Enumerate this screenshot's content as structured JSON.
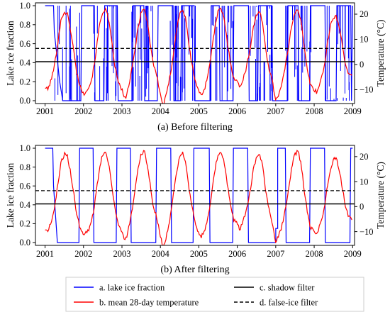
{
  "figure": {
    "legend": {
      "entries": [
        {
          "key": "ice",
          "label": "a. lake ice fraction",
          "color": "#0000ff",
          "dash": false
        },
        {
          "key": "temp",
          "label": "b. mean 28-day temperature",
          "color": "#ff0000",
          "dash": false
        },
        {
          "key": "shadow",
          "label": "c. shadow filter",
          "color": "#000000",
          "dash": false
        },
        {
          "key": "falseice",
          "label": "d. false-ice filter",
          "color": "#000000",
          "dash": true
        }
      ]
    }
  },
  "chart_data": [
    {
      "type": "line",
      "caption": "(a) Before filtering",
      "ylabel": "Lake ice fraction",
      "y2label": "Temperature (°C)",
      "xlim": [
        2000.75,
        2009.05
      ],
      "ylim": [
        -0.03,
        1.03
      ],
      "y2lim": [
        -15.5,
        24.5
      ],
      "xticks": [
        "2001",
        "2002",
        "2003",
        "2004",
        "2005",
        "2006",
        "2007",
        "2008",
        "2009"
      ],
      "yticks": [
        "0.0",
        "0.2",
        "0.4",
        "0.6",
        "0.8",
        "1.0"
      ],
      "y2ticks": [
        "−10",
        "0",
        "10",
        "20"
      ],
      "shadow_filter": 0.41,
      "false_ice_filter": 0.55,
      "series": [
        {
          "name": "a. lake ice fraction",
          "axis": "left",
          "noisy": true,
          "x": [
            2001.0,
            2001.22,
            2001.24,
            2001.38,
            2001.46,
            2001.6,
            2001.93,
            2001.95,
            2002.28,
            2002.3,
            2002.53,
            2002.55,
            2002.88,
            2002.9,
            2003.27,
            2003.29,
            2003.57,
            2003.59,
            2003.92,
            2003.94,
            2004.33,
            2004.35,
            2004.53,
            2004.55,
            2004.88,
            2004.9,
            2005.3,
            2005.32,
            2005.53,
            2005.55,
            2005.89,
            2005.91,
            2006.29,
            2006.31,
            2006.53,
            2006.55,
            2006.9,
            2006.92,
            2007.3,
            2007.32,
            2007.58,
            2007.6,
            2007.88,
            2007.9,
            2008.28,
            2008.3,
            2008.57,
            2008.59,
            2008.95,
            2008.97,
            2009.0
          ],
          "y": [
            1.0,
            1.0,
            0.72,
            0.2,
            0.0,
            0.0,
            0.0,
            1.0,
            1.0,
            0.0,
            0.0,
            1.0,
            1.0,
            0.0,
            0.0,
            1.0,
            1.0,
            0.0,
            0.0,
            1.0,
            1.0,
            0.0,
            0.0,
            1.0,
            1.0,
            0.0,
            0.0,
            1.0,
            1.0,
            0.0,
            0.0,
            1.0,
            1.0,
            0.0,
            0.0,
            1.0,
            1.0,
            0.0,
            0.0,
            1.0,
            1.0,
            0.0,
            0.0,
            1.0,
            1.0,
            0.0,
            0.0,
            1.0,
            1.0,
            0.0,
            1.0
          ]
        },
        {
          "name": "b. mean 28-day temperature",
          "axis": "right",
          "x": [
            2001.0,
            2001.07,
            2001.14,
            2001.21,
            2001.28,
            2001.35,
            2001.42,
            2001.5,
            2001.58,
            2001.66,
            2001.74,
            2001.82,
            2001.9,
            2002.0,
            2002.07,
            2002.14,
            2002.21,
            2002.28,
            2002.35,
            2002.42,
            2002.5,
            2002.58,
            2002.66,
            2002.74,
            2002.82,
            2002.9,
            2003.0,
            2003.07,
            2003.14,
            2003.21,
            2003.28,
            2003.35,
            2003.42,
            2003.5,
            2003.58,
            2003.66,
            2003.74,
            2003.82,
            2003.9,
            2004.0,
            2004.07,
            2004.14,
            2004.21,
            2004.28,
            2004.35,
            2004.42,
            2004.5,
            2004.58,
            2004.66,
            2004.74,
            2004.82,
            2004.9,
            2005.0,
            2005.07,
            2005.14,
            2005.21,
            2005.28,
            2005.35,
            2005.42,
            2005.5,
            2005.58,
            2005.66,
            2005.74,
            2005.82,
            2005.9,
            2006.0,
            2006.07,
            2006.14,
            2006.21,
            2006.28,
            2006.35,
            2006.42,
            2006.5,
            2006.58,
            2006.66,
            2006.74,
            2006.82,
            2006.9,
            2007.0,
            2007.07,
            2007.14,
            2007.21,
            2007.28,
            2007.35,
            2007.42,
            2007.5,
            2007.58,
            2007.66,
            2007.74,
            2007.82,
            2007.9,
            2008.0,
            2008.07,
            2008.14,
            2008.21,
            2008.28,
            2008.35,
            2008.42,
            2008.5,
            2008.58,
            2008.66,
            2008.74,
            2008.82,
            2008.9,
            2008.98
          ],
          "y": [
            -9,
            -10,
            -7,
            -3,
            3,
            11,
            18,
            21,
            20,
            14,
            6,
            -3,
            -8,
            -12,
            -10,
            -9,
            -6,
            0,
            8,
            16,
            21,
            22,
            17,
            8,
            -1,
            -7,
            -10,
            -14,
            -11,
            -6,
            0,
            7,
            15,
            21,
            22,
            17,
            8,
            0,
            -4,
            -12,
            -16,
            -13,
            -8,
            -2,
            6,
            14,
            20,
            22,
            18,
            8,
            0,
            -6,
            -11,
            -12,
            -10,
            -6,
            0,
            7,
            15,
            21,
            22,
            18,
            9,
            1,
            -5,
            -7,
            -9,
            -6,
            -3,
            2,
            8,
            15,
            20,
            21,
            16,
            6,
            -1,
            -6,
            -14,
            -12,
            -9,
            -4,
            2,
            9,
            16,
            21,
            22,
            17,
            7,
            -2,
            -8,
            -10,
            -11,
            -8,
            -4,
            1,
            9,
            15,
            19,
            19,
            14,
            7,
            0,
            -4,
            -5
          ]
        },
        {
          "name": "c. shadow filter",
          "axis": "left",
          "y": 0.41
        },
        {
          "name": "d. false-ice filter",
          "axis": "left",
          "y": 0.55
        }
      ]
    },
    {
      "type": "line",
      "caption": "(b) After filtering",
      "ylabel": "Lake ice fraction",
      "y2label": "Temperature (°C)",
      "xlim": [
        2000.75,
        2009.05
      ],
      "ylim": [
        -0.03,
        1.03
      ],
      "y2lim": [
        -15.5,
        24.5
      ],
      "xticks": [
        "2001",
        "2002",
        "2003",
        "2004",
        "2005",
        "2006",
        "2007",
        "2008",
        "2009"
      ],
      "yticks": [
        "0.0",
        "0.2",
        "0.4",
        "0.6",
        "0.8",
        "1.0"
      ],
      "y2ticks": [
        "−10",
        "0",
        "10",
        "20"
      ],
      "shadow_filter": 0.41,
      "false_ice_filter": 0.55,
      "series": [
        {
          "name": "a. lake ice fraction",
          "axis": "left",
          "noisy": false,
          "x": [
            2001.0,
            2001.2,
            2001.22,
            2001.32,
            2001.34,
            2001.88,
            2001.9,
            2002.25,
            2002.27,
            2002.85,
            2002.87,
            2003.22,
            2003.24,
            2003.88,
            2003.9,
            2004.27,
            2004.29,
            2004.85,
            2004.87,
            2005.27,
            2005.29,
            2005.88,
            2005.9,
            2006.27,
            2006.29,
            2006.88,
            2006.9,
            2007.0,
            2007.0,
            2007.05,
            2007.05,
            2007.25,
            2007.27,
            2007.88,
            2007.9,
            2008.27,
            2008.29,
            2008.93,
            2008.95,
            2009.0
          ],
          "y": [
            1.0,
            1.0,
            0.6,
            0.0,
            0.0,
            0.0,
            1.0,
            1.0,
            0.0,
            0.0,
            1.0,
            1.0,
            0.0,
            0.0,
            1.0,
            1.0,
            0.0,
            0.0,
            1.0,
            1.0,
            0.0,
            0.0,
            1.0,
            1.0,
            0.0,
            0.0,
            0.0,
            0.0,
            0.15,
            0.15,
            1.0,
            1.0,
            0.0,
            0.0,
            1.0,
            1.0,
            0.0,
            0.0,
            1.0,
            1.0
          ]
        },
        {
          "name": "b. mean 28-day temperature",
          "axis": "right",
          "x": [
            2001.0,
            2001.07,
            2001.14,
            2001.21,
            2001.28,
            2001.35,
            2001.42,
            2001.5,
            2001.58,
            2001.66,
            2001.74,
            2001.82,
            2001.9,
            2002.0,
            2002.07,
            2002.14,
            2002.21,
            2002.28,
            2002.35,
            2002.42,
            2002.5,
            2002.58,
            2002.66,
            2002.74,
            2002.82,
            2002.9,
            2003.0,
            2003.07,
            2003.14,
            2003.21,
            2003.28,
            2003.35,
            2003.42,
            2003.5,
            2003.58,
            2003.66,
            2003.74,
            2003.82,
            2003.9,
            2004.0,
            2004.07,
            2004.14,
            2004.21,
            2004.28,
            2004.35,
            2004.42,
            2004.5,
            2004.58,
            2004.66,
            2004.74,
            2004.82,
            2004.9,
            2005.0,
            2005.07,
            2005.14,
            2005.21,
            2005.28,
            2005.35,
            2005.42,
            2005.5,
            2005.58,
            2005.66,
            2005.74,
            2005.82,
            2005.9,
            2006.0,
            2006.07,
            2006.14,
            2006.21,
            2006.28,
            2006.35,
            2006.42,
            2006.5,
            2006.58,
            2006.66,
            2006.74,
            2006.82,
            2006.9,
            2007.0,
            2007.07,
            2007.14,
            2007.21,
            2007.28,
            2007.35,
            2007.42,
            2007.5,
            2007.58,
            2007.66,
            2007.74,
            2007.82,
            2007.9,
            2008.0,
            2008.07,
            2008.14,
            2008.21,
            2008.28,
            2008.35,
            2008.42,
            2008.5,
            2008.58,
            2008.66,
            2008.74,
            2008.82,
            2008.9,
            2008.98
          ],
          "y": [
            -9,
            -10,
            -7,
            -3,
            3,
            11,
            18,
            21,
            20,
            14,
            6,
            -3,
            -8,
            -12,
            -10,
            -9,
            -6,
            0,
            8,
            16,
            21,
            22,
            17,
            8,
            -1,
            -7,
            -10,
            -14,
            -11,
            -6,
            0,
            7,
            15,
            21,
            22,
            17,
            8,
            0,
            -4,
            -12,
            -16,
            -13,
            -8,
            -2,
            6,
            14,
            20,
            22,
            18,
            8,
            0,
            -6,
            -11,
            -12,
            -10,
            -6,
            0,
            7,
            15,
            21,
            22,
            18,
            9,
            1,
            -5,
            -7,
            -9,
            -6,
            -3,
            2,
            8,
            15,
            20,
            21,
            16,
            6,
            -1,
            -6,
            -14,
            -12,
            -9,
            -4,
            2,
            9,
            16,
            21,
            22,
            17,
            7,
            -2,
            -8,
            -10,
            -11,
            -8,
            -4,
            1,
            9,
            15,
            19,
            19,
            14,
            7,
            0,
            -4,
            -5
          ]
        },
        {
          "name": "c. shadow filter",
          "axis": "left",
          "y": 0.41
        },
        {
          "name": "d. false-ice filter",
          "axis": "left",
          "y": 0.55
        }
      ]
    }
  ]
}
